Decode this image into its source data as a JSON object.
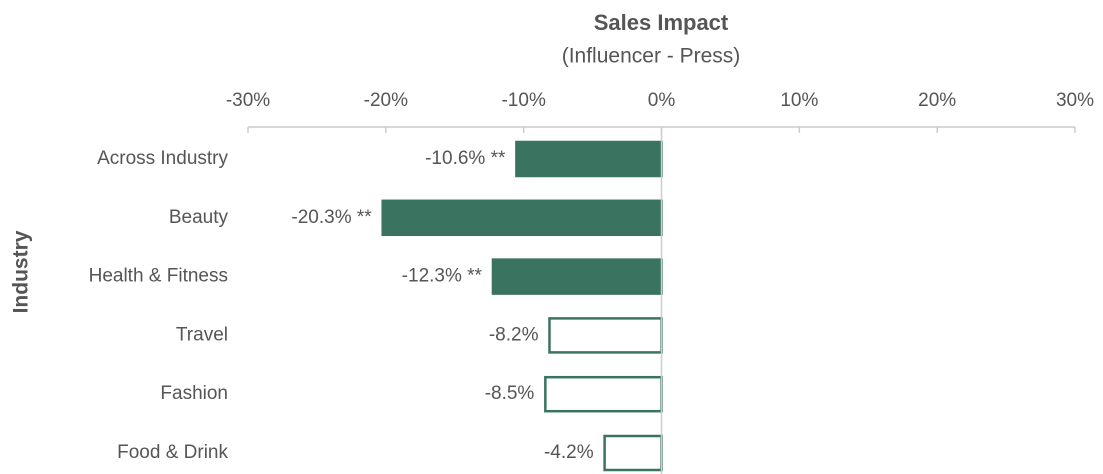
{
  "chart_data": {
    "type": "barh",
    "title": "Sales Impact",
    "subtitle": "(Influencer - Press)",
    "ylabel": "Industry",
    "categories": [
      "Across Industry",
      "Beauty",
      "Health & Fitness",
      "Travel",
      "Fashion",
      "Food & Drink"
    ],
    "values": [
      -10.6,
      -20.3,
      -12.3,
      -8.2,
      -8.5,
      -4.2
    ],
    "value_labels": [
      "-10.6% **",
      "-20.3% **",
      "-12.3% **",
      "-8.2%",
      "-8.5%",
      "-4.2%"
    ],
    "fill_colors": [
      "#3a7360",
      "#3a7360",
      "#3a7360",
      "#ffffff",
      "#ffffff",
      "#ffffff"
    ],
    "edge_color": "#3a7360",
    "xlim": [
      -30,
      30
    ],
    "xticks": [
      {
        "value": -30,
        "label": "-30%"
      },
      {
        "value": -20,
        "label": "-20%"
      },
      {
        "value": -10,
        "label": "-10%"
      },
      {
        "value": 0,
        "label": "0%"
      },
      {
        "value": 10,
        "label": "10%"
      },
      {
        "value": 20,
        "label": "20%"
      },
      {
        "value": 30,
        "label": "30%"
      }
    ],
    "xaxis_position": "top"
  }
}
